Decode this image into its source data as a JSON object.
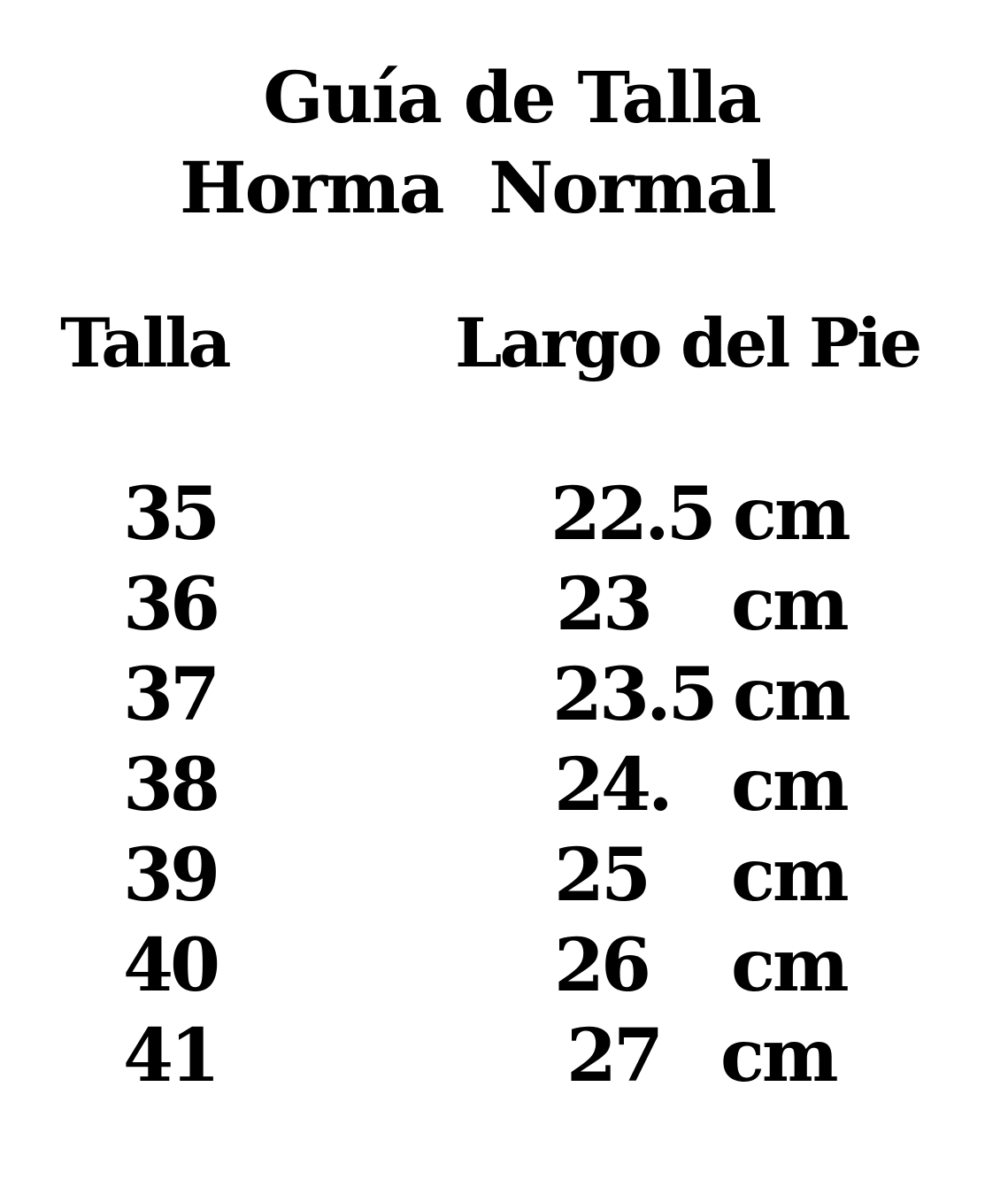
{
  "title": {
    "line1": "Guía de Talla",
    "line2": "Horma  Normal"
  },
  "table": {
    "headers": [
      "Talla",
      "Largo del Pie"
    ],
    "rows": [
      {
        "talla": "35",
        "largo": "22.5",
        "unit": "cm"
      },
      {
        "talla": "36",
        "largo": "23",
        "unit": "cm"
      },
      {
        "talla": "37",
        "largo": "23.5",
        "unit": "cm"
      },
      {
        "talla": "38",
        "largo": "24.",
        "unit": "cm"
      },
      {
        "talla": "39",
        "largo": "25",
        "unit": "cm"
      },
      {
        "talla": "40",
        "largo": "26",
        "unit": "cm"
      },
      {
        "talla": "41",
        "largo": "27",
        "unit": "cm"
      }
    ]
  }
}
